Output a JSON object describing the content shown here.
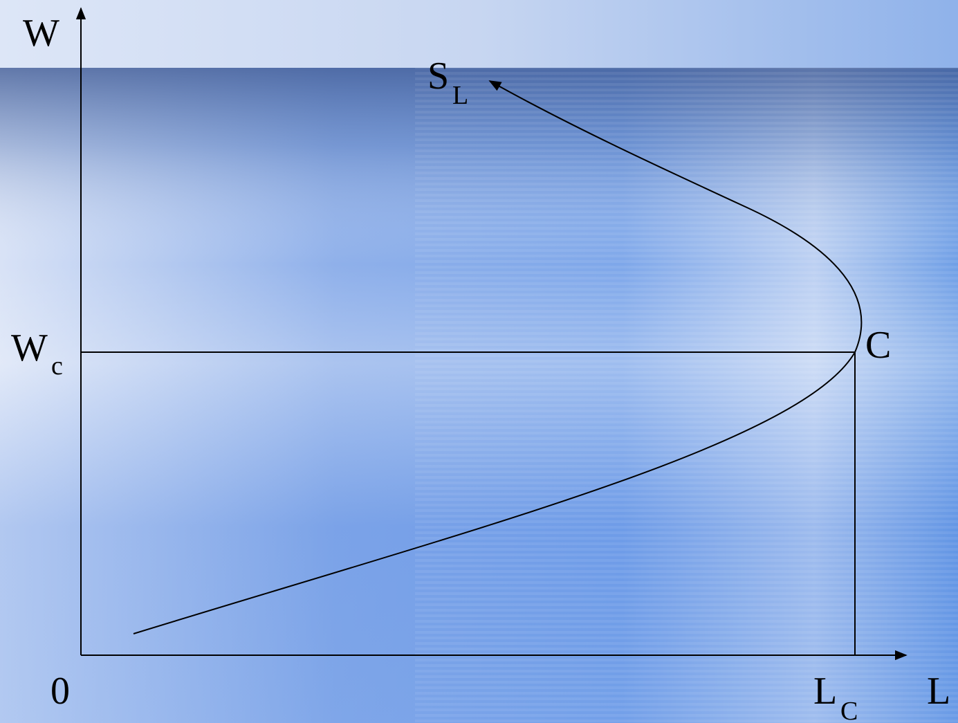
{
  "diagram": {
    "y_axis_label": "W",
    "x_axis_label": "L",
    "origin_label": "0",
    "wc_label": {
      "main": "W",
      "sub": "c"
    },
    "lc_label": {
      "main": "L",
      "sub": "C"
    },
    "point_label": "C",
    "curve_label": {
      "main": "S",
      "sub": "L"
    }
  },
  "colors": {
    "line": "#000000",
    "band_top": "#c9d8f2",
    "background_blue": "#6f9fe6"
  }
}
